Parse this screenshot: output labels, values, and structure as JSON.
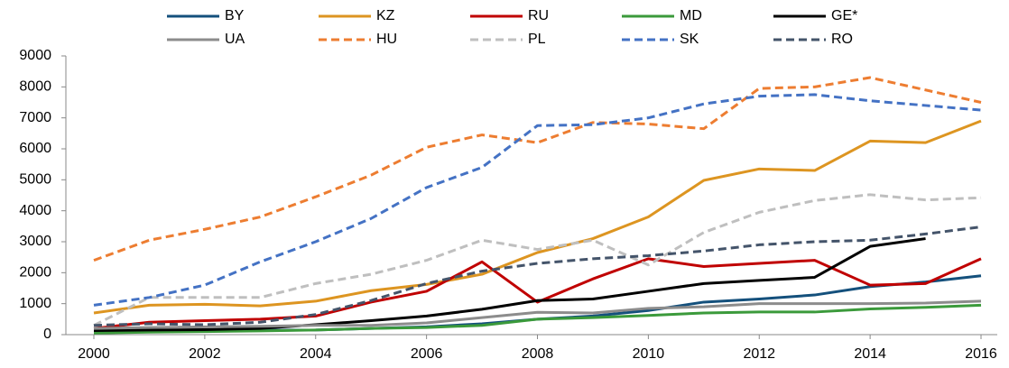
{
  "chart_data": {
    "type": "line",
    "x": [
      2000,
      2001,
      2002,
      2003,
      2004,
      2005,
      2006,
      2007,
      2008,
      2009,
      2010,
      2011,
      2012,
      2013,
      2014,
      2015,
      2016
    ],
    "xlim": [
      2000,
      2016
    ],
    "xticks": [
      2000,
      2002,
      2004,
      2006,
      2008,
      2010,
      2012,
      2014,
      2016
    ],
    "ylim": [
      0,
      9000
    ],
    "yticks": [
      0,
      1000,
      2000,
      3000,
      4000,
      5000,
      6000,
      7000,
      8000,
      9000
    ],
    "legend": "top",
    "series": [
      {
        "name": "BY",
        "color": "#14507c",
        "dashed": false,
        "values": [
          100,
          120,
          130,
          140,
          150,
          200,
          250,
          350,
          500,
          600,
          780,
          1050,
          1150,
          1280,
          1550,
          1700,
          1900
        ]
      },
      {
        "name": "KZ",
        "color": "#dd9521",
        "dashed": false,
        "values": [
          700,
          950,
          980,
          930,
          1080,
          1420,
          1620,
          1950,
          2650,
          3100,
          3800,
          4980,
          5350,
          5300,
          6250,
          6200,
          6900
        ]
      },
      {
        "name": "RU",
        "color": "#c00000",
        "dashed": false,
        "values": [
          200,
          400,
          450,
          500,
          600,
          1050,
          1400,
          2350,
          1050,
          1800,
          2450,
          2200,
          2300,
          2400,
          1600,
          1650,
          2450
        ]
      },
      {
        "name": "MD",
        "color": "#3b9a3b",
        "dashed": false,
        "values": [
          50,
          80,
          100,
          120,
          150,
          200,
          230,
          300,
          500,
          550,
          620,
          700,
          730,
          730,
          830,
          880,
          950
        ]
      },
      {
        "name": "GE*",
        "color": "#000000",
        "dashed": false,
        "values": [
          130,
          150,
          160,
          200,
          320,
          450,
          600,
          820,
          1100,
          1150,
          1400,
          1650,
          1750,
          1850,
          2850,
          3100,
          null
        ]
      },
      {
        "name": "UA",
        "color": "#8c8c8c",
        "dashed": false,
        "values": [
          200,
          230,
          250,
          270,
          300,
          300,
          380,
          550,
          720,
          700,
          850,
          900,
          1000,
          1000,
          1000,
          1020,
          1080
        ]
      },
      {
        "name": "HU",
        "color": "#ed7d31",
        "dashed": true,
        "values": [
          2400,
          3050,
          3400,
          3800,
          4450,
          5150,
          6050,
          6450,
          6200,
          6850,
          6800,
          6650,
          7950,
          8000,
          8300,
          7900,
          7500
        ]
      },
      {
        "name": "PL",
        "color": "#bfbfbf",
        "dashed": true,
        "values": [
          300,
          1200,
          1200,
          1200,
          1650,
          1950,
          2400,
          3050,
          2750,
          3050,
          2250,
          3300,
          3950,
          4330,
          4520,
          4350,
          4420
        ]
      },
      {
        "name": "SK",
        "color": "#4472c4",
        "dashed": true,
        "values": [
          950,
          1200,
          1600,
          2350,
          3000,
          3750,
          4750,
          5400,
          6750,
          6780,
          7000,
          7450,
          7700,
          7750,
          7550,
          7400,
          7250
        ]
      },
      {
        "name": "RO",
        "color": "#44546a",
        "dashed": true,
        "values": [
          300,
          350,
          320,
          400,
          650,
          1100,
          1650,
          2050,
          2300,
          2450,
          2550,
          2700,
          2900,
          3000,
          3050,
          3250,
          3480
        ]
      }
    ]
  }
}
